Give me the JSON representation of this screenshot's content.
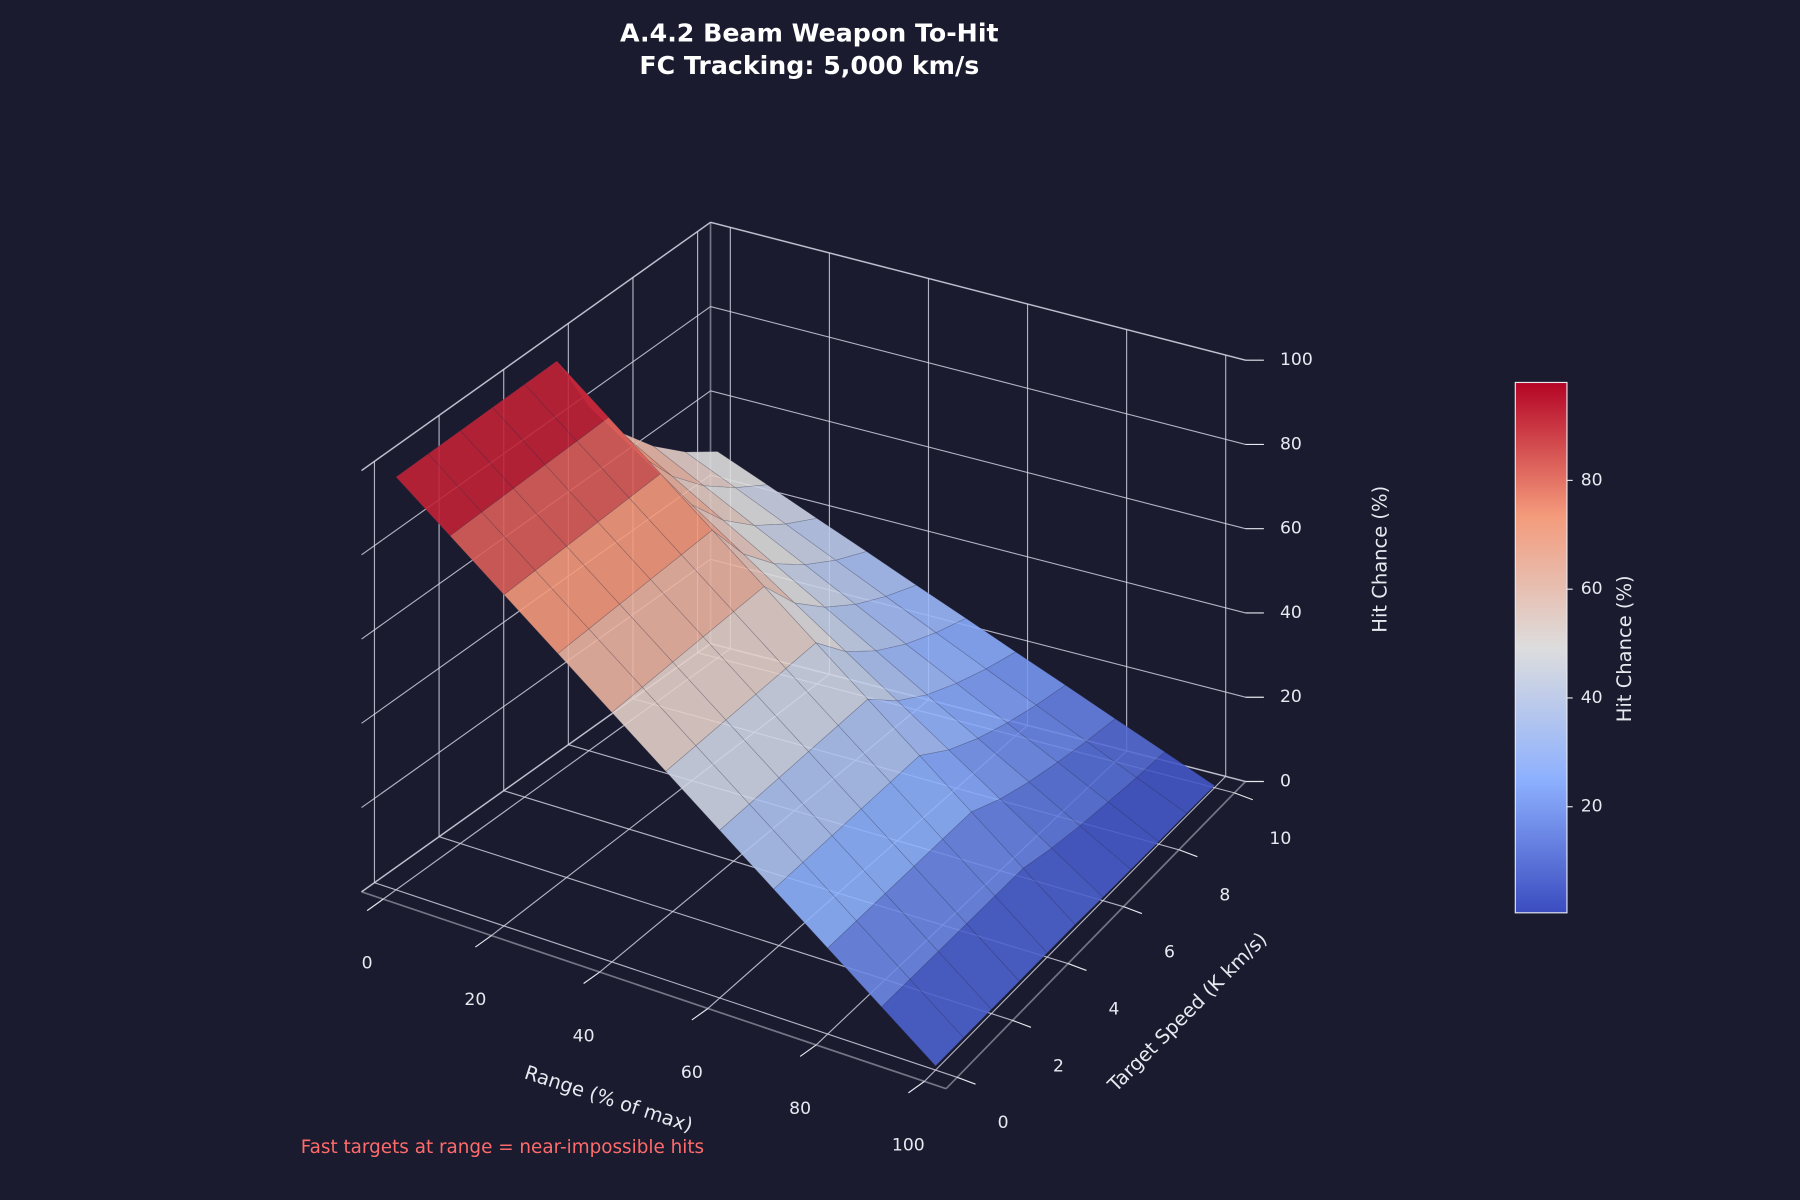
{
  "chart_data": {
    "type": "surface",
    "title": "A.4.2 Beam Weapon To-Hit",
    "subtitle": "FC Tracking: 5,000 km/s",
    "x_label": "Range (% of max)",
    "y_label": "Target Speed (K km/s)",
    "z_label": "Hit Chance (%)",
    "colorbar_label": "Hit Chance (%)",
    "annotation": "Fast targets at range = near-impossible hits",
    "x": [
      0,
      10,
      20,
      30,
      40,
      50,
      60,
      70,
      80,
      90,
      100
    ],
    "y": [
      0,
      1,
      2,
      3,
      4,
      5,
      6,
      7,
      8,
      9,
      10
    ],
    "z": [
      [
        98,
        88.3,
        78.6,
        68.9,
        59.2,
        49.5,
        39.8,
        30.1,
        20.4,
        10.7,
        1
      ],
      [
        98,
        88.3,
        78.6,
        68.9,
        59.2,
        49.5,
        39.8,
        30.1,
        20.4,
        10.7,
        1
      ],
      [
        98,
        88.3,
        78.6,
        68.9,
        59.2,
        49.5,
        39.8,
        30.1,
        20.4,
        10.7,
        1
      ],
      [
        98,
        88.3,
        78.6,
        68.9,
        59.2,
        49.5,
        39.8,
        30.1,
        20.4,
        10.7,
        1
      ],
      [
        98,
        88.3,
        78.6,
        68.9,
        59.2,
        49.5,
        39.8,
        30.1,
        20.4,
        10.7,
        1
      ],
      [
        98,
        88.3,
        78.6,
        68.9,
        59.2,
        49.5,
        39.8,
        30.1,
        20.4,
        10.7,
        1
      ],
      [
        81.7,
        73.6,
        65.5,
        57.4,
        49.3,
        41.3,
        33.2,
        25.1,
        17,
        8.9,
        0.8
      ],
      [
        70,
        63.1,
        56.1,
        49.2,
        42.3,
        35.4,
        28.4,
        21.5,
        14.6,
        7.6,
        0.7
      ],
      [
        61.3,
        55.2,
        49.1,
        43.1,
        37,
        30.9,
        24.9,
        18.8,
        12.8,
        6.7,
        0.6
      ],
      [
        54.4,
        49.1,
        43.7,
        38.3,
        32.9,
        27.5,
        22.1,
        16.7,
        11.3,
        5.9,
        0.6
      ],
      [
        49,
        44.2,
        39.3,
        34.5,
        29.6,
        24.8,
        19.9,
        15.1,
        10.2,
        5.4,
        0.5
      ]
    ],
    "xlim": [
      0,
      100
    ],
    "ylim": [
      0,
      10
    ],
    "zlim": [
      0,
      100
    ],
    "xticks": [
      0,
      20,
      40,
      60,
      80,
      100
    ],
    "yticks": [
      0,
      2,
      4,
      6,
      8,
      10
    ],
    "zticks": [
      0,
      20,
      40,
      60,
      80,
      100
    ],
    "colorbar_ticks": [
      20,
      40,
      60,
      80
    ],
    "colormap": [
      "#3b4cc0",
      "#8db0fe",
      "#dddddd",
      "#f49a7b",
      "#b40426"
    ],
    "grid": true
  }
}
